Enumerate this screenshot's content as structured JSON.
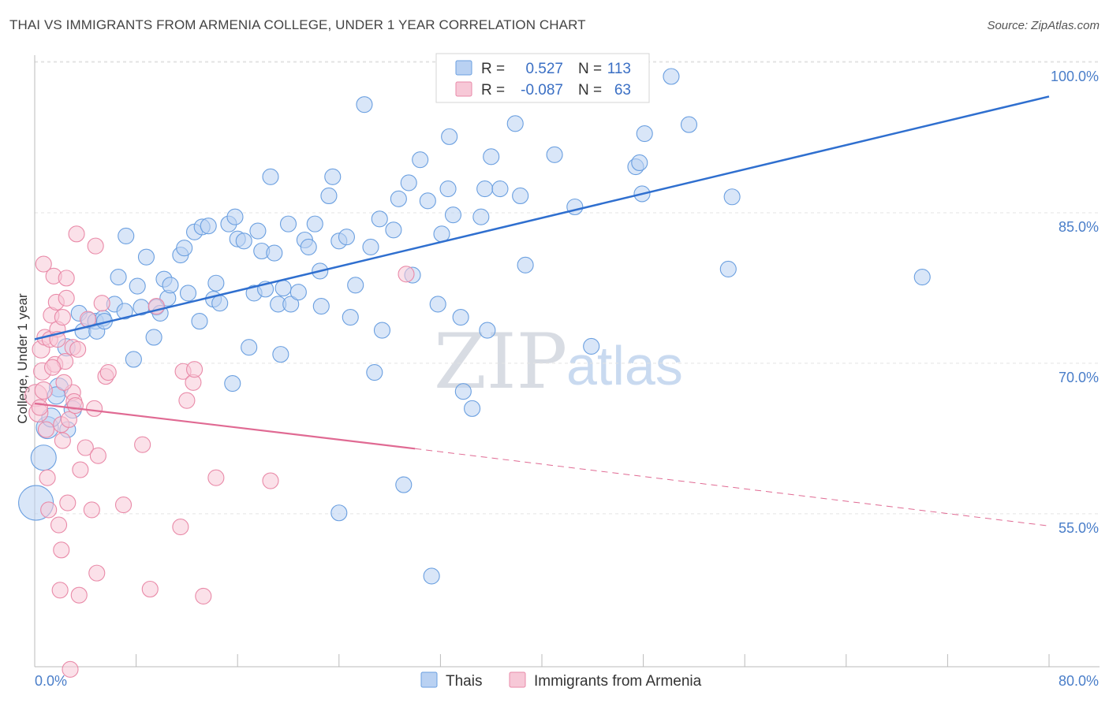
{
  "header": {
    "title": "THAI VS IMMIGRANTS FROM ARMENIA COLLEGE, UNDER 1 YEAR CORRELATION CHART",
    "source": "Source: ZipAtlas.com"
  },
  "watermark": {
    "zip": "ZIP",
    "atlas": "atlas"
  },
  "colors": {
    "blue": "#6a9fe0",
    "blue_fill": "#b9d1f2",
    "blue_line": "#2f6fcf",
    "pink": "#e98aa8",
    "pink_fill": "#f7c8d7",
    "pink_line": "#e06a93",
    "tick_text": "#4a7ec9"
  },
  "legend_top": {
    "rows": [
      {
        "r_label": "R =",
        "r_value": "0.527",
        "n_label": "N =",
        "n_value": "113"
      },
      {
        "r_label": "R =",
        "r_value": "-0.087",
        "n_label": "N =",
        "n_value": "63"
      }
    ]
  },
  "legend_bottom": {
    "items": [
      "Thais",
      "Immigrants from Armenia"
    ]
  },
  "chart_data": {
    "type": "scatter",
    "title": "THAI VS IMMIGRANTS FROM ARMENIA COLLEGE, UNDER 1 YEAR CORRELATION CHART",
    "xlabel": "",
    "ylabel": "College, Under 1 year",
    "xlim": [
      0,
      80
    ],
    "ylim": [
      41,
      101.5
    ],
    "x_tick_labels": [
      "0.0%",
      "80.0%"
    ],
    "y_ticks": [
      55,
      70,
      85,
      100
    ],
    "y_tick_labels": [
      "55.0%",
      "70.0%",
      "85.0%",
      "100.0%"
    ],
    "grid": true,
    "legend_position": "top-center",
    "series": [
      {
        "name": "Thais",
        "r": 0.527,
        "n": 113,
        "trend": {
          "x": [
            0,
            80
          ],
          "y": [
            73.8,
            98.0
          ],
          "style": "solid"
        },
        "points": [
          [
            0.1,
            57.5,
            22
          ],
          [
            0.7,
            62.0,
            16
          ],
          [
            1.0,
            65.0,
            14
          ],
          [
            1.3,
            66.0,
            12
          ],
          [
            1.9,
            69.0,
            12
          ],
          [
            1.7,
            68.2,
            11
          ],
          [
            2.5,
            73.0,
            11
          ],
          [
            3.0,
            66.8,
            11
          ],
          [
            3.5,
            76.4,
            10
          ],
          [
            3.8,
            74.6,
            10
          ],
          [
            4.3,
            75.7,
            10
          ],
          [
            4.8,
            75.6,
            10
          ],
          [
            4.9,
            74.6,
            10
          ],
          [
            5.4,
            75.9,
            10
          ],
          [
            6.3,
            77.3,
            10
          ],
          [
            6.6,
            80.0,
            10
          ],
          [
            7.1,
            76.6,
            10
          ],
          [
            7.2,
            84.1,
            10
          ],
          [
            7.8,
            71.8,
            10
          ],
          [
            8.1,
            79.1,
            10
          ],
          [
            8.4,
            77.0,
            10
          ],
          [
            8.8,
            82.0,
            10
          ],
          [
            9.4,
            74.0,
            10
          ],
          [
            9.6,
            77.0,
            10
          ],
          [
            9.9,
            76.4,
            10
          ],
          [
            10.2,
            79.8,
            10
          ],
          [
            10.5,
            77.9,
            10
          ],
          [
            10.7,
            79.2,
            10
          ],
          [
            11.5,
            82.2,
            10
          ],
          [
            11.8,
            82.9,
            10
          ],
          [
            12.1,
            78.4,
            10
          ],
          [
            12.6,
            84.5,
            10
          ],
          [
            13.0,
            75.6,
            10
          ],
          [
            13.2,
            85.0,
            10
          ],
          [
            13.7,
            85.1,
            10
          ],
          [
            14.1,
            77.8,
            10
          ],
          [
            14.3,
            79.4,
            10
          ],
          [
            14.6,
            77.4,
            10
          ],
          [
            15.3,
            85.3,
            10
          ],
          [
            15.6,
            69.4,
            10
          ],
          [
            15.8,
            86.0,
            10
          ],
          [
            16.0,
            83.8,
            10
          ],
          [
            16.5,
            83.6,
            10
          ],
          [
            16.9,
            73.0,
            10
          ],
          [
            17.3,
            78.4,
            10
          ],
          [
            17.6,
            84.6,
            10
          ],
          [
            17.9,
            82.6,
            10
          ],
          [
            18.2,
            78.8,
            10
          ],
          [
            18.6,
            90.0,
            10
          ],
          [
            18.9,
            82.4,
            10
          ],
          [
            19.2,
            77.3,
            10
          ],
          [
            19.4,
            72.3,
            10
          ],
          [
            19.6,
            78.9,
            10
          ],
          [
            20.0,
            85.3,
            10
          ],
          [
            20.2,
            77.3,
            10
          ],
          [
            20.8,
            78.5,
            10
          ],
          [
            21.3,
            83.7,
            10
          ],
          [
            21.6,
            83.0,
            10
          ],
          [
            22.1,
            85.3,
            10
          ],
          [
            22.5,
            80.6,
            10
          ],
          [
            22.6,
            77.1,
            10
          ],
          [
            23.2,
            88.1,
            10
          ],
          [
            23.5,
            90.0,
            10
          ],
          [
            24.0,
            83.6,
            10
          ],
          [
            24.6,
            84.0,
            10
          ],
          [
            24.9,
            76.0,
            10
          ],
          [
            25.3,
            79.2,
            10
          ],
          [
            26.0,
            97.2,
            10
          ],
          [
            26.5,
            83.0,
            10
          ],
          [
            26.8,
            70.5,
            10
          ],
          [
            27.2,
            85.8,
            10
          ],
          [
            27.4,
            74.7,
            10
          ],
          [
            28.3,
            84.7,
            10
          ],
          [
            28.7,
            87.8,
            10
          ],
          [
            29.1,
            59.3,
            10
          ],
          [
            29.5,
            89.4,
            10
          ],
          [
            29.8,
            80.2,
            10
          ],
          [
            30.4,
            91.7,
            10
          ],
          [
            31.0,
            87.6,
            10
          ],
          [
            31.3,
            50.2,
            10
          ],
          [
            31.8,
            77.3,
            10
          ],
          [
            32.1,
            84.3,
            10
          ],
          [
            32.6,
            88.8,
            10
          ],
          [
            32.7,
            94.0,
            10
          ],
          [
            33.0,
            86.2,
            10
          ],
          [
            33.6,
            76.0,
            10
          ],
          [
            33.8,
            68.6,
            10
          ],
          [
            34.5,
            66.9,
            10
          ],
          [
            35.2,
            86.0,
            10
          ],
          [
            35.5,
            88.8,
            10
          ],
          [
            35.7,
            74.7,
            10
          ],
          [
            36.0,
            92.0,
            10
          ],
          [
            36.7,
            88.8,
            10
          ],
          [
            37.9,
            95.3,
            10
          ],
          [
            38.3,
            88.1,
            10
          ],
          [
            38.7,
            81.2,
            10
          ],
          [
            41.0,
            92.2,
            10
          ],
          [
            42.6,
            87.0,
            10
          ],
          [
            43.9,
            73.1,
            10
          ],
          [
            47.4,
            91.0,
            10
          ],
          [
            47.7,
            91.4,
            10
          ],
          [
            47.9,
            88.3,
            10
          ],
          [
            48.1,
            94.3,
            10
          ],
          [
            50.2,
            100.0,
            10
          ],
          [
            51.6,
            95.2,
            10
          ],
          [
            54.7,
            80.8,
            10
          ],
          [
            55.0,
            88.0,
            10
          ],
          [
            70.0,
            80.0,
            10
          ],
          [
            24.0,
            56.5,
            10
          ],
          [
            2.6,
            64.8,
            10
          ],
          [
            5.5,
            75.6,
            10
          ]
        ]
      },
      {
        "name": "Immigrants from Armenia",
        "r": -0.087,
        "n": 63,
        "trend_solid": {
          "x": [
            0,
            30
          ],
          "y": [
            67.4,
            62.9
          ]
        },
        "trend_dashed": {
          "x": [
            30,
            80
          ],
          "y": [
            62.9,
            55.2
          ]
        },
        "points": [
          [
            0.1,
            68.2,
            14
          ],
          [
            0.3,
            66.5,
            12
          ],
          [
            0.5,
            72.8,
            11
          ],
          [
            0.6,
            70.6,
            11
          ],
          [
            0.7,
            68.7,
            11
          ],
          [
            0.7,
            81.3,
            10
          ],
          [
            0.8,
            74.0,
            10
          ],
          [
            0.9,
            64.8,
            10
          ],
          [
            1.0,
            60.0,
            10
          ],
          [
            1.1,
            56.8,
            10
          ],
          [
            1.2,
            73.8,
            10
          ],
          [
            1.3,
            76.2,
            10
          ],
          [
            1.5,
            80.1,
            10
          ],
          [
            1.6,
            71.3,
            10
          ],
          [
            1.7,
            77.5,
            10
          ],
          [
            1.8,
            74.8,
            10
          ],
          [
            1.8,
            73.8,
            10
          ],
          [
            1.9,
            55.3,
            10
          ],
          [
            2.0,
            48.8,
            10
          ],
          [
            2.1,
            52.8,
            10
          ],
          [
            2.1,
            65.3,
            10
          ],
          [
            2.2,
            63.7,
            10
          ],
          [
            2.2,
            76.0,
            10
          ],
          [
            2.4,
            71.6,
            10
          ],
          [
            2.5,
            77.9,
            10
          ],
          [
            2.5,
            79.9,
            10
          ],
          [
            2.6,
            57.5,
            10
          ],
          [
            2.7,
            65.8,
            10
          ],
          [
            2.8,
            40.9,
            10
          ],
          [
            3.0,
            68.5,
            10
          ],
          [
            3.0,
            73.0,
            10
          ],
          [
            3.1,
            67.6,
            10
          ],
          [
            3.2,
            67.2,
            10
          ],
          [
            3.3,
            84.3,
            10
          ],
          [
            3.4,
            72.8,
            10
          ],
          [
            3.5,
            48.3,
            10
          ],
          [
            3.6,
            60.8,
            10
          ],
          [
            4.0,
            63.0,
            10
          ],
          [
            4.2,
            75.8,
            10
          ],
          [
            4.5,
            56.8,
            10
          ],
          [
            4.7,
            66.9,
            10
          ],
          [
            4.8,
            83.1,
            10
          ],
          [
            4.9,
            50.5,
            10
          ],
          [
            5.0,
            62.2,
            10
          ],
          [
            5.3,
            77.4,
            10
          ],
          [
            5.6,
            70.1,
            10
          ],
          [
            5.8,
            70.5,
            10
          ],
          [
            7.0,
            57.3,
            10
          ],
          [
            8.5,
            63.3,
            10
          ],
          [
            9.1,
            48.9,
            10
          ],
          [
            9.6,
            77.1,
            10
          ],
          [
            11.5,
            55.1,
            10
          ],
          [
            11.7,
            70.6,
            10
          ],
          [
            12.0,
            67.7,
            10
          ],
          [
            12.5,
            69.5,
            10
          ],
          [
            12.6,
            70.8,
            10
          ],
          [
            13.3,
            48.2,
            10
          ],
          [
            14.3,
            60.0,
            10
          ],
          [
            18.6,
            59.7,
            10
          ],
          [
            29.3,
            80.3,
            10
          ],
          [
            0.4,
            67.0,
            10
          ],
          [
            1.4,
            71.0,
            10
          ],
          [
            2.3,
            69.5,
            10
          ]
        ]
      }
    ]
  }
}
